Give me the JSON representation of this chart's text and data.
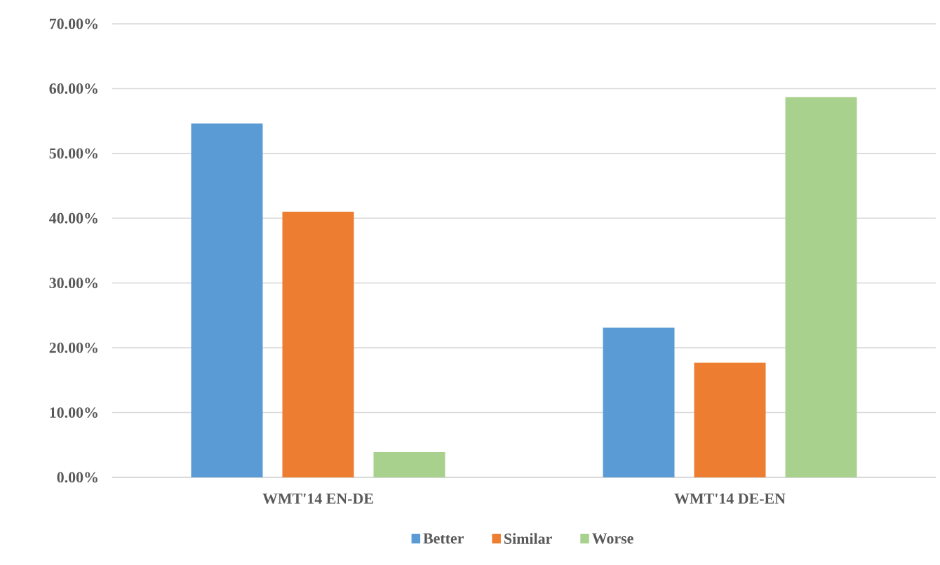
{
  "chart_data": {
    "type": "bar",
    "categories": [
      "WMT'14 EN-DE",
      "WMT'14 DE-EN"
    ],
    "series": [
      {
        "name": "Better",
        "color": "#5b9bd5",
        "values": [
          54.6,
          23.1
        ]
      },
      {
        "name": "Similar",
        "color": "#ed7d31",
        "values": [
          41.0,
          17.7
        ]
      },
      {
        "name": "Worse",
        "color": "#a9d18e",
        "values": [
          3.9,
          58.7
        ]
      }
    ],
    "ylim": [
      0,
      70
    ],
    "yticks": [
      {
        "value": 0,
        "label": "0.00%"
      },
      {
        "value": 10,
        "label": "10.00%"
      },
      {
        "value": 20,
        "label": "20.00%"
      },
      {
        "value": 30,
        "label": "30.00%"
      },
      {
        "value": 40,
        "label": "40.00%"
      },
      {
        "value": 50,
        "label": "50.00%"
      },
      {
        "value": 60,
        "label": "60.00%"
      },
      {
        "value": 70,
        "label": "70.00%"
      }
    ],
    "grid": "y",
    "legend": "bottom"
  }
}
